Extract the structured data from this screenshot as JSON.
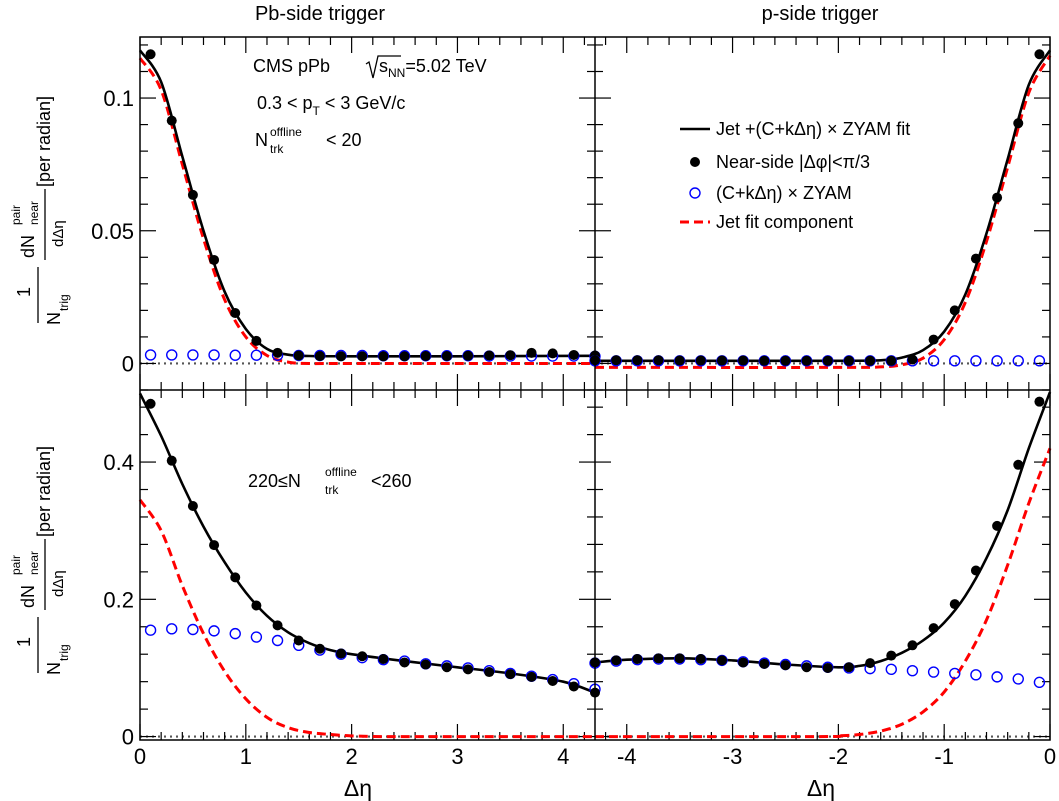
{
  "column_titles": [
    "Pb-side trigger",
    "p-side trigger"
  ],
  "x_axis_label": "Δη",
  "y_axis_label": {
    "prefix": "1",
    "n": "N",
    "trig": "trig",
    "dN": "dN",
    "pair": "pair",
    "near": "near",
    "deta": "dΔη",
    "unit": "[per radian]"
  },
  "annotations": {
    "experiment": "CMS pPb",
    "energy": "=5.02 TeV",
    "sqrt_s": "s",
    "sqrt_s_sub": "NN",
    "pt_range_a": "0.3 < p",
    "pt_sub": "T",
    "pt_range_b": " < 3 GeV/c",
    "mult_low_N": "N",
    "mult_sup": "offline",
    "mult_sub": "trk",
    "mult_low_rest": "< 20",
    "mult_high_pre": "220≤N",
    "mult_high_rest": "<260"
  },
  "legend": [
    {
      "label": "Jet +(C+kΔη) × ZYAM fit",
      "style": "black-line"
    },
    {
      "label": "Near-side |Δφ|<π/3",
      "style": "black-dot"
    },
    {
      "label": "(C+kΔη) × ZYAM",
      "style": "blue-open-circle"
    },
    {
      "label": "Jet fit component",
      "style": "red-dashed"
    }
  ],
  "colors": {
    "fit": "#000000",
    "data": "#000000",
    "zyam": "#0000ff",
    "jet": "#ff0000",
    "zero_line": "#555555"
  },
  "chart_data": [
    {
      "type": "scatter",
      "panel": "top-left",
      "xlim": [
        0,
        4.3
      ],
      "ylim": [
        -0.01,
        0.123
      ],
      "xticks": [
        0,
        1,
        2,
        3,
        4
      ],
      "yticks": [
        0,
        0.05,
        0.1
      ],
      "ytick_labels": [
        "0",
        "0.05",
        "0.1"
      ],
      "series": [
        {
          "name": "Near-side |Δφ|<π/3",
          "x": [
            0.1,
            0.3,
            0.5,
            0.7,
            0.9,
            1.1,
            1.3,
            1.5,
            1.7,
            1.9,
            2.1,
            2.3,
            2.5,
            2.7,
            2.9,
            3.1,
            3.3,
            3.5,
            3.7,
            3.9,
            4.1,
            4.3
          ],
          "y": [
            0.1165,
            0.0915,
            0.0635,
            0.039,
            0.019,
            0.0085,
            0.004,
            0.003,
            0.0028,
            0.0027,
            0.0027,
            0.0027,
            0.0027,
            0.0028,
            0.0028,
            0.0029,
            0.003,
            0.0031,
            0.004,
            0.0038,
            0.0032,
            0.003
          ]
        },
        {
          "name": "(C+kΔη) × ZYAM",
          "x": [
            0.1,
            0.3,
            0.5,
            0.7,
            0.9,
            1.1,
            1.3,
            1.5,
            1.7,
            1.9,
            2.1,
            2.3,
            2.5,
            2.7,
            2.9,
            3.1,
            3.3,
            3.5,
            3.7,
            3.9,
            4.1,
            4.3
          ],
          "y": [
            0.0032,
            0.0032,
            0.0032,
            0.0032,
            0.0031,
            0.0031,
            0.0031,
            0.003,
            0.003,
            0.003,
            0.003,
            0.0029,
            0.0029,
            0.0029,
            0.0029,
            0.0029,
            0.0028,
            0.0028,
            0.0028,
            0.0028,
            0.0028,
            0.0027
          ]
        },
        {
          "name": "Jet +(C+kΔη) × ZYAM fit",
          "x": [
            0,
            0.2,
            0.4,
            0.6,
            0.8,
            1.0,
            1.2,
            1.4,
            1.6,
            2.0,
            3.0,
            4.3
          ],
          "y": [
            0.118,
            0.106,
            0.078,
            0.05,
            0.027,
            0.013,
            0.0055,
            0.0033,
            0.0028,
            0.0027,
            0.0027,
            0.0029
          ]
        },
        {
          "name": "Jet fit component",
          "x": [
            0,
            0.2,
            0.4,
            0.6,
            0.8,
            1.0,
            1.2,
            1.4,
            1.6,
            2.0,
            4.3
          ],
          "y": [
            0.115,
            0.103,
            0.075,
            0.047,
            0.024,
            0.01,
            0.003,
            0.0005,
            0.0,
            0.0,
            0.0
          ]
        }
      ]
    },
    {
      "type": "scatter",
      "panel": "top-right",
      "xlim": [
        -4.3,
        0
      ],
      "ylim": [
        -0.01,
        0.123
      ],
      "xticks": [
        -4,
        -3,
        -2,
        -1,
        0
      ],
      "yticks": [
        0,
        0.05,
        0.1
      ],
      "series": [
        {
          "name": "Near-side |Δφ|<π/3",
          "x": [
            -4.3,
            -4.1,
            -3.9,
            -3.7,
            -3.5,
            -3.3,
            -3.1,
            -2.9,
            -2.7,
            -2.5,
            -2.3,
            -2.1,
            -1.9,
            -1.7,
            -1.5,
            -1.3,
            -1.1,
            -0.9,
            -0.7,
            -0.5,
            -0.3,
            -0.1
          ],
          "y": [
            0.0012,
            0.0012,
            0.0012,
            0.0012,
            0.0011,
            0.0011,
            0.0011,
            0.0011,
            0.001,
            0.001,
            0.001,
            0.001,
            0.001,
            0.001,
            0.001,
            0.0015,
            0.009,
            0.02,
            0.0395,
            0.0625,
            0.0905,
            0.1165
          ]
        },
        {
          "name": "(C+kΔη) × ZYAM",
          "x": [
            -4.3,
            -4.1,
            -3.9,
            -3.7,
            -3.5,
            -3.3,
            -3.1,
            -2.9,
            -2.7,
            -2.5,
            -2.3,
            -2.1,
            -1.9,
            -1.7,
            -1.5,
            -1.3,
            -1.1,
            -0.9,
            -0.7,
            -0.5,
            -0.3,
            -0.1
          ],
          "y": [
            0.001,
            0.001,
            0.001,
            0.001,
            0.001,
            0.001,
            0.001,
            0.001,
            0.001,
            0.001,
            0.001,
            0.001,
            0.001,
            0.001,
            0.001,
            0.001,
            0.001,
            0.001,
            0.001,
            0.001,
            0.001,
            0.001
          ]
        },
        {
          "name": "Jet +(C+kΔη) × ZYAM fit",
          "x": [
            -4.3,
            -3.0,
            -2.0,
            -1.6,
            -1.4,
            -1.2,
            -1.0,
            -0.8,
            -0.6,
            -0.4,
            -0.2,
            0
          ],
          "y": [
            0.001,
            0.001,
            0.001,
            0.0012,
            0.0022,
            0.005,
            0.012,
            0.026,
            0.049,
            0.077,
            0.105,
            0.118
          ]
        },
        {
          "name": "Jet fit component",
          "x": [
            -4.3,
            -2.0,
            -1.6,
            -1.4,
            -1.2,
            -1.0,
            -0.8,
            -0.6,
            -0.4,
            -0.2,
            0
          ],
          "y": [
            -0.0015,
            -0.0015,
            -0.0013,
            -0.0005,
            0.002,
            0.009,
            0.023,
            0.046,
            0.074,
            0.102,
            0.116
          ]
        }
      ]
    },
    {
      "type": "scatter",
      "panel": "bottom-left",
      "xlim": [
        0,
        4.3
      ],
      "ylim": [
        -0.005,
        0.505
      ],
      "xticks": [
        0,
        1,
        2,
        3,
        4
      ],
      "yticks": [
        0,
        0.2,
        0.4
      ],
      "ytick_labels": [
        "0",
        "0.2",
        "0.4"
      ],
      "series": [
        {
          "name": "Near-side |Δφ|<π/3",
          "x": [
            0.1,
            0.3,
            0.5,
            0.7,
            0.9,
            1.1,
            1.3,
            1.5,
            1.7,
            1.9,
            2.1,
            2.3,
            2.5,
            2.7,
            2.9,
            3.1,
            3.3,
            3.5,
            3.7,
            3.9,
            4.1,
            4.3
          ],
          "y": [
            0.485,
            0.402,
            0.336,
            0.279,
            0.232,
            0.191,
            0.162,
            0.14,
            0.128,
            0.121,
            0.117,
            0.113,
            0.108,
            0.105,
            0.101,
            0.098,
            0.094,
            0.091,
            0.087,
            0.081,
            0.073,
            0.064
          ]
        },
        {
          "name": "(C+kΔη) × ZYAM",
          "x": [
            0.1,
            0.3,
            0.5,
            0.7,
            0.9,
            1.1,
            1.3,
            1.5,
            1.7,
            1.9,
            2.1,
            2.3,
            2.5,
            2.7,
            2.9,
            3.1,
            3.3,
            3.5,
            3.7,
            3.9,
            4.1,
            4.3
          ],
          "y": [
            0.155,
            0.157,
            0.156,
            0.154,
            0.15,
            0.145,
            0.14,
            0.133,
            0.126,
            0.12,
            0.115,
            0.112,
            0.11,
            0.106,
            0.103,
            0.1,
            0.096,
            0.092,
            0.088,
            0.083,
            0.077,
            0.069
          ]
        },
        {
          "name": "Jet +(C+kΔη) × ZYAM fit",
          "x": [
            0,
            0.2,
            0.4,
            0.6,
            0.8,
            1.0,
            1.2,
            1.4,
            1.6,
            1.8,
            2.0,
            2.5,
            3.0,
            3.5,
            4.0,
            4.3
          ],
          "y": [
            0.5,
            0.438,
            0.368,
            0.306,
            0.254,
            0.21,
            0.176,
            0.152,
            0.136,
            0.126,
            0.12,
            0.11,
            0.101,
            0.092,
            0.08,
            0.064
          ]
        },
        {
          "name": "Jet fit component",
          "x": [
            0,
            0.2,
            0.4,
            0.6,
            0.8,
            1.0,
            1.2,
            1.4,
            1.6,
            1.8,
            2.0,
            2.3,
            2.6,
            4.3
          ],
          "y": [
            0.345,
            0.3,
            0.22,
            0.15,
            0.095,
            0.055,
            0.028,
            0.013,
            0.006,
            0.003,
            0.001,
            0.0,
            0.0,
            0.0
          ]
        }
      ]
    },
    {
      "type": "scatter",
      "panel": "bottom-right",
      "xlim": [
        -4.3,
        0
      ],
      "ylim": [
        -0.005,
        0.505
      ],
      "xticks": [
        -4,
        -3,
        -2,
        -1,
        0
      ],
      "yticks": [
        0,
        0.2,
        0.4
      ],
      "series": [
        {
          "name": "Near-side |Δφ|<π/3",
          "x": [
            -4.3,
            -4.1,
            -3.9,
            -3.7,
            -3.5,
            -3.3,
            -3.1,
            -2.9,
            -2.7,
            -2.5,
            -2.3,
            -2.1,
            -1.9,
            -1.7,
            -1.5,
            -1.3,
            -1.1,
            -0.9,
            -0.7,
            -0.5,
            -0.3,
            -0.1
          ],
          "y": [
            0.108,
            0.111,
            0.113,
            0.114,
            0.114,
            0.113,
            0.111,
            0.108,
            0.106,
            0.104,
            0.101,
            0.1,
            0.101,
            0.107,
            0.118,
            0.133,
            0.158,
            0.193,
            0.242,
            0.307,
            0.396,
            0.488
          ]
        },
        {
          "name": "(C+kΔη) × ZYAM",
          "x": [
            -4.3,
            -4.1,
            -3.9,
            -3.7,
            -3.5,
            -3.3,
            -3.1,
            -2.9,
            -2.7,
            -2.5,
            -2.3,
            -2.1,
            -1.9,
            -1.7,
            -1.5,
            -1.3,
            -1.1,
            -0.9,
            -0.7,
            -0.5,
            -0.3,
            -0.1
          ],
          "y": [
            0.107,
            0.11,
            0.112,
            0.113,
            0.113,
            0.112,
            0.111,
            0.109,
            0.107,
            0.105,
            0.103,
            0.101,
            0.1,
            0.099,
            0.098,
            0.096,
            0.094,
            0.092,
            0.09,
            0.087,
            0.084,
            0.079
          ]
        },
        {
          "name": "Jet +(C+kΔη) × ZYAM fit",
          "x": [
            -4.3,
            -4.0,
            -3.5,
            -3.0,
            -2.5,
            -2.0,
            -1.8,
            -1.6,
            -1.4,
            -1.2,
            -1.0,
            -0.8,
            -0.6,
            -0.4,
            -0.2,
            0
          ],
          "y": [
            0.108,
            0.112,
            0.114,
            0.111,
            0.105,
            0.101,
            0.103,
            0.11,
            0.122,
            0.14,
            0.166,
            0.205,
            0.26,
            0.33,
            0.42,
            0.502
          ]
        },
        {
          "name": "Jet fit component",
          "x": [
            -4.3,
            -2.2,
            -2.0,
            -1.8,
            -1.6,
            -1.4,
            -1.2,
            -1.0,
            -0.8,
            -0.6,
            -0.4,
            -0.2,
            0
          ],
          "y": [
            0.0,
            0.0,
            0.001,
            0.003,
            0.008,
            0.018,
            0.036,
            0.065,
            0.11,
            0.17,
            0.25,
            0.34,
            0.42
          ]
        }
      ]
    }
  ]
}
